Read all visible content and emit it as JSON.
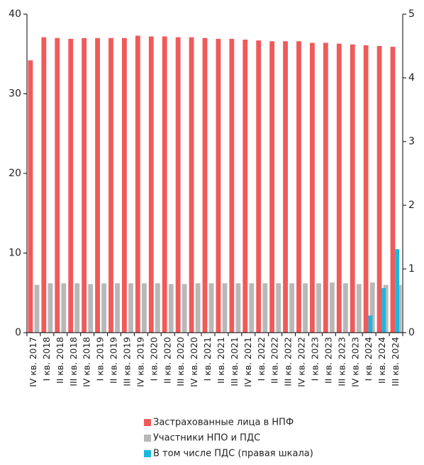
{
  "chart_data": {
    "type": "bar",
    "categories": [
      "IV кв. 2017",
      "I кв. 2018",
      "II кв. 2018",
      "III кв. 2018",
      "IV кв. 2018",
      "I кв. 2019",
      "II кв. 2019",
      "III кв. 2019",
      "IV кв. 2019",
      "I кв. 2020",
      "II кв. 2020",
      "III кв. 2020",
      "IV кв. 2020",
      "I кв. 2021",
      "II кв. 2021",
      "III кв. 2021",
      "IV кв. 2021",
      "I кв. 2022",
      "II кв. 2022",
      "III кв. 2022",
      "IV кв. 2022",
      "I кв. 2023",
      "II кв. 2023",
      "III кв. 2023",
      "IV кв. 2023",
      "I кв. 2024",
      "II кв. 2024",
      "III кв. 2024"
    ],
    "series": [
      {
        "name": "Застрахованные лица в НПФ",
        "color": "#f05a5a",
        "values": [
          34.2,
          37.1,
          37.0,
          36.9,
          37.0,
          37.0,
          37.0,
          37.0,
          37.3,
          37.2,
          37.2,
          37.1,
          37.1,
          37.0,
          36.9,
          36.9,
          36.8,
          36.7,
          36.6,
          36.6,
          36.6,
          36.4,
          36.4,
          36.3,
          36.2,
          36.1,
          36.0,
          35.9
        ]
      },
      {
        "name": "Участники НПО и ПДС",
        "color": "#b8b8b8",
        "values": [
          6.0,
          6.2,
          6.2,
          6.2,
          6.1,
          6.2,
          6.2,
          6.2,
          6.2,
          6.2,
          6.1,
          6.1,
          6.2,
          6.2,
          6.2,
          6.2,
          6.2,
          6.2,
          6.2,
          6.2,
          6.2,
          6.2,
          6.3,
          6.2,
          6.1,
          6.3,
          6.0,
          6.0
        ]
      },
      {
        "name": "В том числе ПДС (правая шкала)",
        "color": "#1ab8e0",
        "axis": "y2",
        "values": [
          null,
          null,
          null,
          null,
          null,
          null,
          null,
          null,
          null,
          null,
          null,
          null,
          null,
          null,
          null,
          null,
          null,
          null,
          null,
          null,
          null,
          null,
          null,
          null,
          null,
          0.27,
          0.7,
          1.31
        ]
      }
    ],
    "ylim": [
      0,
      40
    ],
    "yticks": [
      0,
      10,
      20,
      30,
      40
    ],
    "y2lim": [
      0,
      5
    ],
    "y2ticks": [
      0,
      1,
      2,
      3,
      4,
      5
    ],
    "grid": false
  }
}
